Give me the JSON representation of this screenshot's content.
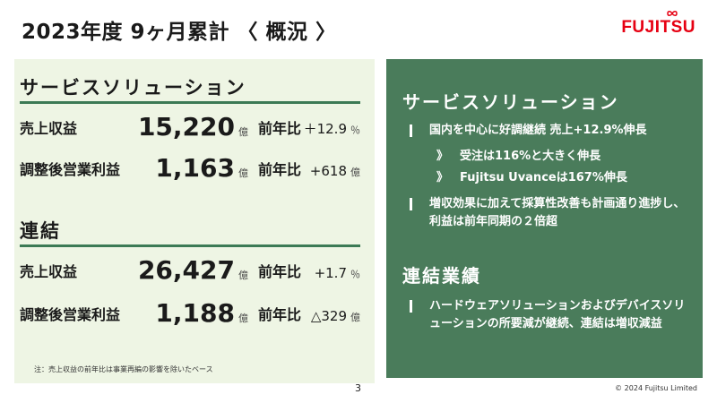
{
  "title": "2023年度 9ヶ月累計 〈 概況 〉",
  "logo_text": "FUJITSU",
  "left": {
    "service": {
      "heading": "サービスソリューション",
      "rows": [
        {
          "label": "売上収益",
          "value": "15,220",
          "unit": "億",
          "yoy_label": "前年比",
          "change": "＋12.9",
          "change_unit": "％"
        },
        {
          "label": "調整後営業利益",
          "value": "1,163",
          "unit": "億",
          "yoy_label": "前年比",
          "change": "+618",
          "change_unit": "億"
        }
      ]
    },
    "consolidated": {
      "heading": "連結",
      "rows": [
        {
          "label": "売上収益",
          "value": "26,427",
          "unit": "億",
          "yoy_label": "前年比",
          "change": "+1.7",
          "change_unit": "％"
        },
        {
          "label": "調整後営業利益",
          "value": "1,188",
          "unit": "億",
          "yoy_label": "前年比",
          "change": "△329",
          "change_unit": "億"
        }
      ]
    },
    "note": "注：売上収益の前年比は事業再編の影響を除いたベース"
  },
  "right": {
    "service_heading": "サービスソリューション",
    "service_bullets": [
      {
        "text": "国内を中心に好調継続 売上+12.9%伸長",
        "subs": [
          {
            "mark": "》",
            "text": "受注は116%と大きく伸長"
          },
          {
            "mark": "》",
            "text": "Fujitsu Uvanceは167%伸長"
          }
        ]
      },
      {
        "text": "増収効果に加えて採算性改善も計画通り進捗し、利益は前年同期の２倍超",
        "subs": []
      }
    ],
    "consolidated_heading": "連結業績",
    "consolidated_bullets": [
      {
        "text": "ハードウェアソリューションおよびデバイスソリューションの所要減が継続、連結は増収減益"
      }
    ]
  },
  "footer": {
    "page_number": "3",
    "copyright": "© 2024 Fujitsu Limited"
  }
}
